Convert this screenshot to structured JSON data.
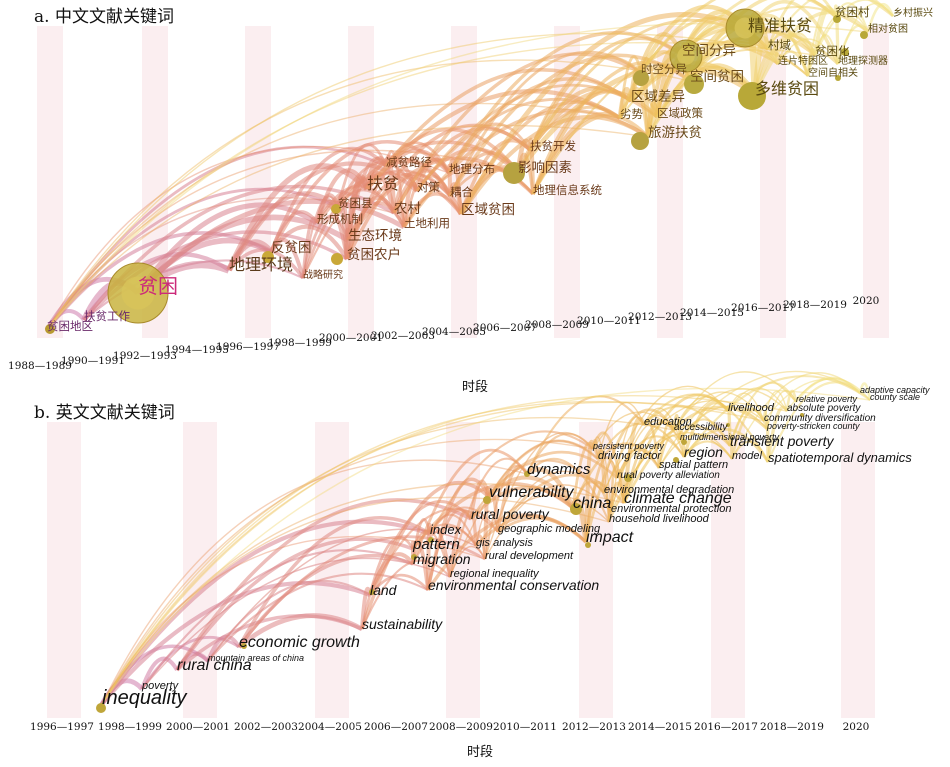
{
  "chart_data": [
    {
      "type": "timezone",
      "title": "a. 中文文献关键词",
      "xlabel": "时段",
      "periods": [
        "1988—1989",
        "1990—1991",
        "1992—1993",
        "1994—1995",
        "1996—1997",
        "1998—1999",
        "2000—2001",
        "2002—2003",
        "2004—2005",
        "2006—2007",
        "2008—2009",
        "2010—2011",
        "2012—2013",
        "2014—2015",
        "2016—2017",
        "2018—2019",
        "2020"
      ],
      "keywords": [
        {
          "label": "贫困",
          "period": "1992—1993",
          "size": 5,
          "color": "#cc2a7a"
        },
        {
          "label": "贫困地区",
          "period": "1988—1989",
          "size": 2,
          "color": "#6a2a6a"
        },
        {
          "label": "扶贫工作",
          "period": "1990—1991",
          "size": 2,
          "color": "#6a2a6a"
        },
        {
          "label": "反贫困",
          "period": "1998—1999",
          "size": 3,
          "color": "#6a3a1a"
        },
        {
          "label": "地理环境",
          "period": "1998—1999",
          "size": 4,
          "color": "#5a3a1a"
        },
        {
          "label": "战略研究",
          "period": "2000—2001",
          "size": 1,
          "color": "#6a3a1a"
        },
        {
          "label": "贫困农户",
          "period": "2000—2001",
          "size": 3,
          "color": "#6a3a1a"
        },
        {
          "label": "生态环境",
          "period": "2000—2001",
          "size": 3,
          "color": "#6a3a1a"
        },
        {
          "label": "形成机制",
          "period": "2000—2001",
          "size": 2,
          "color": "#6a3a1a"
        },
        {
          "label": "贫困县",
          "period": "2000—2001",
          "size": 2,
          "color": "#6a3a1a"
        },
        {
          "label": "扶贫",
          "period": "2002—2003",
          "size": 4,
          "color": "#6a3a1a"
        },
        {
          "label": "减贫路径",
          "period": "2002—2003",
          "size": 2,
          "color": "#6a3a1a"
        },
        {
          "label": "农村",
          "period": "2002—2003",
          "size": 3,
          "color": "#6a3a1a"
        },
        {
          "label": "土地利用",
          "period": "2002—2003",
          "size": 2,
          "color": "#6a3a1a"
        },
        {
          "label": "对策",
          "period": "2004—2005",
          "size": 2,
          "color": "#6a3a1a"
        },
        {
          "label": "耦合",
          "period": "2004—2005",
          "size": 2,
          "color": "#6a3a1a"
        },
        {
          "label": "地理分布",
          "period": "2004—2005",
          "size": 2,
          "color": "#6a3a1a"
        },
        {
          "label": "区域贫困",
          "period": "2004—2005",
          "size": 3,
          "color": "#6a3a1a"
        },
        {
          "label": "影响因素",
          "period": "2006—2007",
          "size": 3,
          "color": "#6a3a1a"
        },
        {
          "label": "地理信息系统",
          "period": "2006—2007",
          "size": 2,
          "color": "#6a3a1a"
        },
        {
          "label": "扶贫开发",
          "period": "2006—2007",
          "size": 2,
          "color": "#6a3a1a"
        },
        {
          "label": "劣势",
          "period": "2010—2011",
          "size": 2,
          "color": "#6a4a1a"
        },
        {
          "label": "区域政策",
          "period": "2012—2013",
          "size": 2,
          "color": "#6a4a1a"
        },
        {
          "label": "区域差异",
          "period": "2012—2013",
          "size": 3,
          "color": "#6a4a1a"
        },
        {
          "label": "旅游扶贫",
          "period": "2012—2013",
          "size": 3,
          "color": "#6a4a1a"
        },
        {
          "label": "时空分异",
          "period": "2012—2013",
          "size": 2,
          "color": "#6a4a1a"
        },
        {
          "label": "空间分异",
          "period": "2012—2013",
          "size": 3,
          "color": "#6a4a1a"
        },
        {
          "label": "空间贫困",
          "period": "2012—2013",
          "size": 3,
          "color": "#6a4a1a"
        },
        {
          "label": "精准扶贫",
          "period": "2014—2015",
          "size": 4,
          "color": "#5a4a10"
        },
        {
          "label": "多维贫困",
          "period": "2014—2015",
          "size": 4,
          "color": "#5a4a10"
        },
        {
          "label": "村域",
          "period": "2014—2015",
          "size": 2,
          "color": "#5a4a10"
        },
        {
          "label": "连片特困区",
          "period": "2016—2017",
          "size": 1,
          "color": "#5a4a10"
        },
        {
          "label": "贫困村",
          "period": "2018—2019",
          "size": 2,
          "color": "#5a4a10"
        },
        {
          "label": "贫困化",
          "period": "2018—2019",
          "size": 2,
          "color": "#5a4a10"
        },
        {
          "label": "地理探测器",
          "period": "2018—2019",
          "size": 1,
          "color": "#5a4a10"
        },
        {
          "label": "空间自相关",
          "period": "2018—2019",
          "size": 1,
          "color": "#5a4a10"
        },
        {
          "label": "乡村振兴",
          "period": "2020",
          "size": 1,
          "color": "#5a4a10"
        },
        {
          "label": "相对贫困",
          "period": "2020",
          "size": 1,
          "color": "#5a4a10"
        }
      ]
    },
    {
      "type": "timezone",
      "title": "b. 英文文献关键词",
      "xlabel": "时段",
      "periods": [
        "1996—1997",
        "1998—1999",
        "2000—2001",
        "2002—2003",
        "2004—2005",
        "2006—2007",
        "2008—2009",
        "2010—2011",
        "2012—2013",
        "2014—2015",
        "2016—2017",
        "2018—2019",
        "2020"
      ],
      "keywords": [
        {
          "label": "inequality",
          "period": "1998—1999",
          "size": 4
        },
        {
          "label": "poverty",
          "period": "1998—1999",
          "size": 1
        },
        {
          "label": "rural china",
          "period": "2000—2001",
          "size": 3
        },
        {
          "label": "mountain areas of china",
          "period": "2000—2001",
          "size": 1
        },
        {
          "label": "economic growth",
          "period": "2002—2003",
          "size": 3
        },
        {
          "label": "sustainability",
          "period": "2006—2007",
          "size": 2
        },
        {
          "label": "land",
          "period": "2006—2007",
          "size": 2
        },
        {
          "label": "migration",
          "period": "2008—2009",
          "size": 2
        },
        {
          "label": "pattern",
          "period": "2008—2009",
          "size": 2
        },
        {
          "label": "index",
          "period": "2008—2009",
          "size": 2
        },
        {
          "label": "environmental conservation",
          "period": "2008—2009",
          "size": 2
        },
        {
          "label": "regional inequality",
          "period": "2008—2009",
          "size": 1
        },
        {
          "label": "gis analysis",
          "period": "2008—2009",
          "size": 1
        },
        {
          "label": "rural development",
          "period": "2010—2011",
          "size": 1
        },
        {
          "label": "geographic modeling",
          "period": "2010—2011",
          "size": 1
        },
        {
          "label": "rural poverty",
          "period": "2010—2011",
          "size": 2
        },
        {
          "label": "vulnerability",
          "period": "2010—2011",
          "size": 3
        },
        {
          "label": "dynamics",
          "period": "2010—2011",
          "size": 2
        },
        {
          "label": "china",
          "period": "2012—2013",
          "size": 3
        },
        {
          "label": "impact",
          "period": "2012—2013",
          "size": 3
        },
        {
          "label": "climate change",
          "period": "2014—2015",
          "size": 3
        },
        {
          "label": "environmental degradation",
          "period": "2014—2015",
          "size": 1
        },
        {
          "label": "environmental protection",
          "period": "2014—2015",
          "size": 1
        },
        {
          "label": "household livelihood",
          "period": "2014—2015",
          "size": 1
        },
        {
          "label": "rural poverty alleviation",
          "period": "2014—2015",
          "size": 1
        },
        {
          "label": "driving factor",
          "period": "2014—2015",
          "size": 1
        },
        {
          "label": "persistent poverty",
          "period": "2014—2015",
          "size": 1
        },
        {
          "label": "education",
          "period": "2014—2015",
          "size": 1
        },
        {
          "label": "accessibility",
          "period": "2014—2015",
          "size": 1
        },
        {
          "label": "multidimensional poverty",
          "period": "2014—2015",
          "size": 1
        },
        {
          "label": "spatial pattern",
          "period": "2014—2015",
          "size": 1
        },
        {
          "label": "region",
          "period": "2016—2017",
          "size": 2
        },
        {
          "label": "model",
          "period": "2016—2017",
          "size": 1
        },
        {
          "label": "livelihood",
          "period": "2016—2017",
          "size": 1
        },
        {
          "label": "transient poverty",
          "period": "2016—2017",
          "size": 2
        },
        {
          "label": "absolute poverty",
          "period": "2018—2019",
          "size": 1
        },
        {
          "label": "community diversification",
          "period": "2018—2019",
          "size": 1
        },
        {
          "label": "poverty-stricken county",
          "period": "2018—2019",
          "size": 1
        },
        {
          "label": "relative poverty",
          "period": "2018—2019",
          "size": 1
        },
        {
          "label": "spatiotemporal dynamics",
          "period": "2018—2019",
          "size": 2
        },
        {
          "label": "adaptive capacity",
          "period": "2020",
          "size": 1
        },
        {
          "label": "county scale",
          "period": "2020",
          "size": 1
        }
      ]
    }
  ]
}
